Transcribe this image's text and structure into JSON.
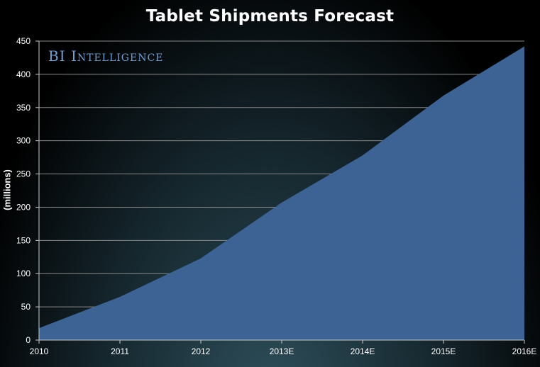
{
  "chart_data": {
    "type": "area",
    "title": "Tablet Shipments Forecast",
    "ylabel": "(millions)",
    "xlabel": "",
    "watermark": "BI Intelligence",
    "categories": [
      "2010",
      "2011",
      "2012",
      "2013E",
      "2014E",
      "2015E",
      "2016E"
    ],
    "series": [
      {
        "values": [
          18,
          65,
          123,
          207,
          278,
          368,
          442
        ]
      }
    ],
    "ylim": [
      0,
      450
    ],
    "yticks": [
      0,
      50,
      100,
      150,
      200,
      250,
      300,
      350,
      400,
      450
    ],
    "grid": true,
    "legend": "none",
    "colors": {
      "area": "#3c6394",
      "grid": "#8a8a8a",
      "axis": "#c8c8c8",
      "text": "#ffffff"
    }
  }
}
